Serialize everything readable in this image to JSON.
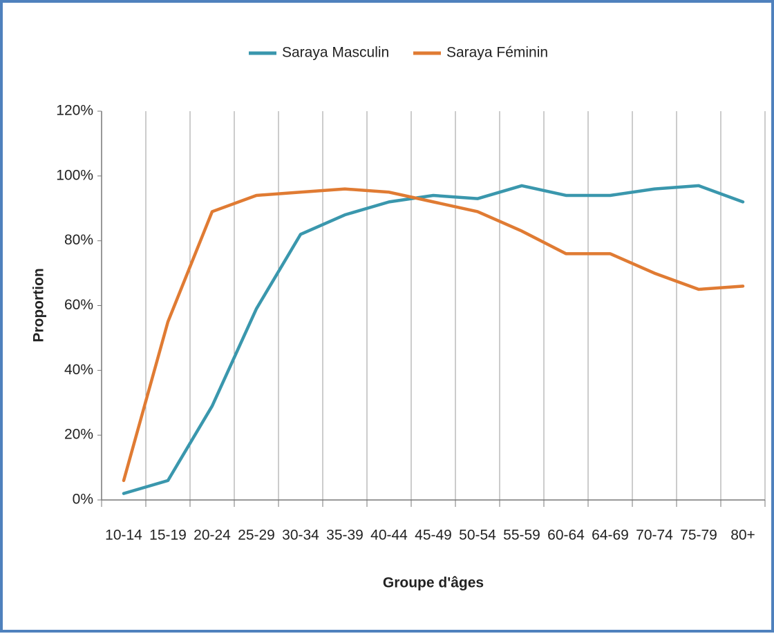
{
  "chart_data": {
    "type": "line",
    "categories": [
      "10-14",
      "15-19",
      "20-24",
      "25-29",
      "30-34",
      "35-39",
      "40-44",
      "45-49",
      "50-54",
      "55-59",
      "60-64",
      "64-69",
      "70-74",
      "75-79",
      "80+"
    ],
    "series": [
      {
        "name": "Saraya Masculin",
        "color": "#3a97ad",
        "values": [
          2,
          6,
          29,
          59,
          82,
          88,
          92,
          94,
          93,
          97,
          94,
          94,
          96,
          97,
          92
        ]
      },
      {
        "name": "Saraya Féminin",
        "color": "#e07b33",
        "values": [
          6,
          55,
          89,
          94,
          95,
          96,
          95,
          92,
          89,
          83,
          76,
          76,
          70,
          65,
          66
        ]
      }
    ],
    "xlabel": "Groupe d'âges",
    "ylabel": "Proportion",
    "ylim": [
      0,
      120
    ],
    "yticks": [
      {
        "value": 0,
        "label": "0%"
      },
      {
        "value": 20,
        "label": "20%"
      },
      {
        "value": 40,
        "label": "40%"
      },
      {
        "value": 60,
        "label": "60%"
      },
      {
        "value": 80,
        "label": "80%"
      },
      {
        "value": 100,
        "label": "100%"
      },
      {
        "value": 120,
        "label": "120%"
      }
    ],
    "grid": true,
    "legend": "top"
  }
}
